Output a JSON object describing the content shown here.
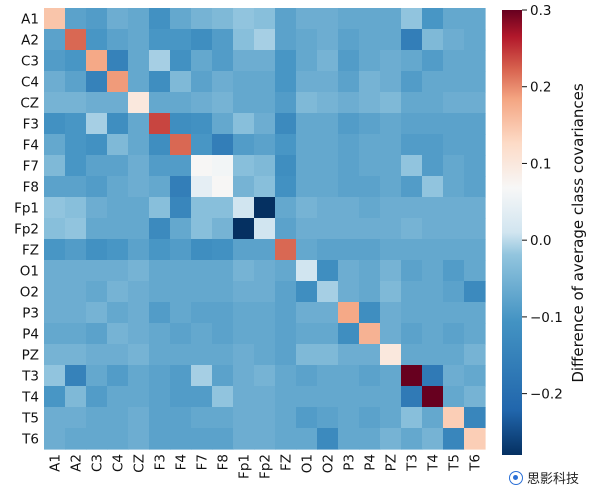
{
  "chart_data": {
    "type": "heatmap",
    "title": "",
    "colorbar_label": "Difference of average class covariances",
    "colorbar_ticks": [
      "0.3",
      "0.2",
      "0.1",
      "0.0",
      "−0.1",
      "−0.2"
    ],
    "colorbar_tick_values": [
      0.3,
      0.2,
      0.1,
      0.0,
      -0.1,
      -0.2
    ],
    "vmin": -0.28,
    "vmax": 0.3,
    "colormap": "RdBu_r",
    "x_labels": [
      "A1",
      "A2",
      "C3",
      "C4",
      "CZ",
      "F3",
      "F4",
      "F7",
      "F8",
      "Fp1",
      "Fp2",
      "FZ",
      "O1",
      "O2",
      "P3",
      "P4",
      "PZ",
      "T3",
      "T4",
      "T5",
      "T6"
    ],
    "y_labels": [
      "A1",
      "A2",
      "C3",
      "C4",
      "CZ",
      "F3",
      "F4",
      "F7",
      "F8",
      "Fp1",
      "Fp2",
      "FZ",
      "O1",
      "O2",
      "P3",
      "P4",
      "PZ",
      "T3",
      "T4",
      "T5",
      "T6"
    ],
    "matrix": [
      [
        0.15,
        -0.08,
        -0.09,
        -0.06,
        -0.07,
        -0.11,
        -0.07,
        -0.05,
        -0.04,
        -0.02,
        -0.03,
        -0.08,
        -0.06,
        -0.06,
        -0.07,
        -0.07,
        -0.07,
        -0.02,
        -0.1,
        -0.07,
        -0.07
      ],
      [
        -0.08,
        0.22,
        -0.1,
        -0.08,
        -0.07,
        -0.1,
        -0.1,
        -0.12,
        -0.09,
        -0.03,
        -0.01,
        -0.08,
        -0.07,
        -0.06,
        -0.08,
        -0.07,
        -0.07,
        -0.16,
        -0.04,
        -0.06,
        -0.07
      ],
      [
        -0.09,
        -0.1,
        0.18,
        -0.15,
        -0.07,
        -0.01,
        -0.11,
        -0.07,
        -0.09,
        -0.06,
        -0.06,
        -0.1,
        -0.07,
        -0.05,
        -0.09,
        -0.07,
        -0.06,
        -0.07,
        -0.09,
        -0.07,
        -0.07
      ],
      [
        -0.06,
        -0.08,
        -0.15,
        0.19,
        -0.07,
        -0.12,
        -0.04,
        -0.08,
        -0.06,
        -0.07,
        -0.07,
        -0.1,
        -0.06,
        -0.06,
        -0.08,
        -0.05,
        -0.06,
        -0.09,
        -0.07,
        -0.07,
        -0.07
      ],
      [
        -0.05,
        -0.05,
        -0.06,
        -0.06,
        0.1,
        -0.07,
        -0.07,
        -0.06,
        -0.05,
        -0.07,
        -0.07,
        -0.09,
        -0.04,
        -0.05,
        -0.06,
        -0.05,
        -0.04,
        -0.07,
        -0.07,
        -0.06,
        -0.06
      ],
      [
        -0.11,
        -0.1,
        -0.01,
        -0.12,
        -0.07,
        0.24,
        -0.12,
        -0.11,
        -0.07,
        -0.03,
        -0.06,
        -0.13,
        -0.07,
        -0.07,
        -0.09,
        -0.08,
        -0.07,
        -0.08,
        -0.08,
        -0.08,
        -0.08
      ],
      [
        -0.07,
        -0.1,
        -0.11,
        -0.04,
        -0.07,
        -0.12,
        0.22,
        -0.1,
        -0.16,
        -0.09,
        -0.08,
        -0.1,
        -0.07,
        -0.07,
        -0.08,
        -0.07,
        -0.07,
        -0.09,
        -0.09,
        -0.08,
        -0.08
      ],
      [
        -0.04,
        -0.1,
        -0.08,
        -0.08,
        -0.06,
        -0.09,
        -0.09,
        0.07,
        0.06,
        -0.03,
        -0.04,
        -0.12,
        -0.07,
        -0.07,
        -0.08,
        -0.07,
        -0.07,
        -0.02,
        -0.09,
        -0.07,
        -0.08
      ],
      [
        -0.08,
        -0.08,
        -0.09,
        -0.07,
        -0.06,
        -0.07,
        -0.16,
        0.04,
        0.07,
        -0.05,
        -0.03,
        -0.11,
        -0.07,
        -0.07,
        -0.08,
        -0.08,
        -0.07,
        -0.09,
        -0.02,
        -0.07,
        -0.08
      ],
      [
        -0.02,
        -0.03,
        -0.06,
        -0.07,
        -0.07,
        -0.03,
        -0.14,
        -0.03,
        -0.03,
        0.01,
        -0.28,
        -0.07,
        -0.05,
        -0.06,
        -0.06,
        -0.07,
        -0.06,
        -0.06,
        -0.06,
        -0.06,
        -0.06
      ],
      [
        -0.03,
        -0.02,
        -0.07,
        -0.07,
        -0.07,
        -0.13,
        -0.07,
        -0.03,
        -0.05,
        -0.28,
        0.01,
        -0.08,
        -0.06,
        -0.06,
        -0.06,
        -0.06,
        -0.06,
        -0.05,
        -0.06,
        -0.06,
        -0.06
      ],
      [
        -0.1,
        -0.09,
        -0.11,
        -0.1,
        -0.08,
        -0.1,
        -0.09,
        -0.12,
        -0.11,
        -0.08,
        -0.08,
        0.22,
        -0.07,
        -0.08,
        -0.08,
        -0.08,
        -0.07,
        -0.07,
        -0.07,
        -0.07,
        -0.07
      ],
      [
        -0.06,
        -0.06,
        -0.06,
        -0.06,
        -0.05,
        -0.07,
        -0.07,
        -0.07,
        -0.07,
        -0.05,
        -0.06,
        -0.07,
        0.01,
        -0.12,
        -0.06,
        -0.07,
        -0.05,
        -0.08,
        -0.07,
        -0.09,
        -0.07
      ],
      [
        -0.06,
        -0.06,
        -0.07,
        -0.05,
        -0.06,
        -0.07,
        -0.07,
        -0.07,
        -0.07,
        -0.06,
        -0.06,
        -0.08,
        -0.12,
        -0.01,
        -0.06,
        -0.07,
        -0.04,
        -0.07,
        -0.07,
        -0.08,
        -0.13
      ],
      [
        -0.06,
        -0.06,
        -0.05,
        -0.07,
        -0.06,
        -0.09,
        -0.07,
        -0.08,
        -0.08,
        -0.07,
        -0.07,
        -0.08,
        -0.06,
        -0.06,
        0.18,
        -0.12,
        -0.06,
        -0.07,
        -0.07,
        -0.07,
        -0.07
      ],
      [
        -0.07,
        -0.07,
        -0.08,
        -0.05,
        -0.06,
        -0.07,
        -0.08,
        -0.07,
        -0.08,
        -0.07,
        -0.07,
        -0.08,
        -0.07,
        -0.07,
        -0.12,
        0.17,
        -0.06,
        -0.08,
        -0.07,
        -0.08,
        -0.07
      ],
      [
        -0.05,
        -0.05,
        -0.06,
        -0.06,
        -0.05,
        -0.07,
        -0.07,
        -0.07,
        -0.07,
        -0.06,
        -0.07,
        -0.08,
        -0.04,
        -0.04,
        -0.06,
        -0.06,
        0.1,
        -0.07,
        -0.07,
        -0.07,
        -0.05
      ],
      [
        -0.02,
        -0.15,
        -0.07,
        -0.09,
        -0.07,
        -0.08,
        -0.09,
        -0.01,
        -0.08,
        -0.06,
        -0.05,
        -0.07,
        -0.08,
        -0.07,
        -0.07,
        -0.08,
        -0.07,
        0.3,
        -0.17,
        -0.06,
        -0.07
      ],
      [
        -0.1,
        -0.04,
        -0.09,
        -0.07,
        -0.07,
        -0.08,
        -0.09,
        -0.09,
        -0.02,
        -0.06,
        -0.06,
        -0.07,
        -0.07,
        -0.07,
        -0.07,
        -0.07,
        -0.07,
        -0.17,
        0.3,
        -0.07,
        -0.05
      ],
      [
        -0.06,
        -0.06,
        -0.07,
        -0.07,
        -0.06,
        -0.08,
        -0.08,
        -0.07,
        -0.07,
        -0.06,
        -0.06,
        -0.07,
        -0.09,
        -0.08,
        -0.07,
        -0.08,
        -0.07,
        -0.03,
        -0.07,
        0.14,
        -0.14
      ],
      [
        -0.06,
        -0.07,
        -0.07,
        -0.07,
        -0.06,
        -0.08,
        -0.08,
        -0.08,
        -0.08,
        -0.06,
        -0.06,
        -0.07,
        -0.07,
        -0.13,
        -0.07,
        -0.07,
        -0.05,
        -0.07,
        -0.05,
        -0.14,
        0.14
      ]
    ]
  },
  "watermark": {
    "text": "思影科技",
    "icon": "wechat-icon"
  }
}
